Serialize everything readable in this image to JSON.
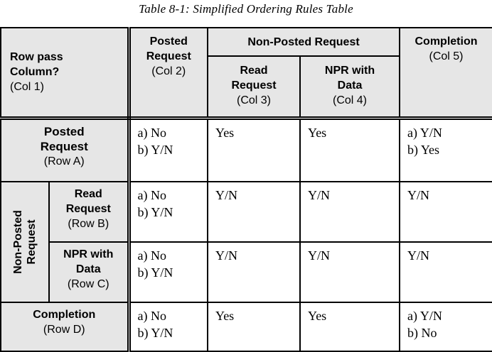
{
  "caption": "Table 8-1: Simplified Ordering Rules Table",
  "header": {
    "corner_line1": "Row pass",
    "corner_line2": "Column?",
    "corner_sub": "(Col 1)",
    "col2_line1": "Posted",
    "col2_line2": "Request",
    "col2_sub": "(Col 2)",
    "nonposted_group": "Non-Posted Request",
    "col3_line1": "Read",
    "col3_line2": "Request",
    "col3_sub": "(Col 3)",
    "col4_line1": "NPR with",
    "col4_line2": "Data",
    "col4_sub": "(Col 4)",
    "col5_line1": "Completion",
    "col5_sub": "(Col 5)"
  },
  "rows": {
    "a": {
      "label_line1": "Posted",
      "label_line2": "Request",
      "sub": "(Row A)",
      "col2": [
        "a) No",
        "b) Y/N"
      ],
      "col3": "Yes",
      "col4": "Yes",
      "col5": [
        "a) Y/N",
        "b) Yes"
      ]
    },
    "nonposted_group": "Non-Posted Request",
    "nonposted_line1": "Non-Posted",
    "nonposted_line2": "Request",
    "b": {
      "label_line1": "Read",
      "label_line2": "Request",
      "sub": "(Row B)",
      "col2": [
        "a) No",
        "b) Y/N"
      ],
      "col3": "Y/N",
      "col4": "Y/N",
      "col5": "Y/N"
    },
    "c": {
      "label_line1": "NPR with",
      "label_line2": "Data",
      "sub": "(Row C)",
      "col2": [
        "a) No",
        "b) Y/N"
      ],
      "col3": "Y/N",
      "col4": "Y/N",
      "col5": "Y/N"
    },
    "d": {
      "label_line1": "Completion",
      "sub": "(Row D)",
      "col2": [
        "a) No",
        "b) Y/N"
      ],
      "col3": "Yes",
      "col4": "Yes",
      "col5": [
        "a) Y/N",
        "b) No"
      ]
    }
  }
}
